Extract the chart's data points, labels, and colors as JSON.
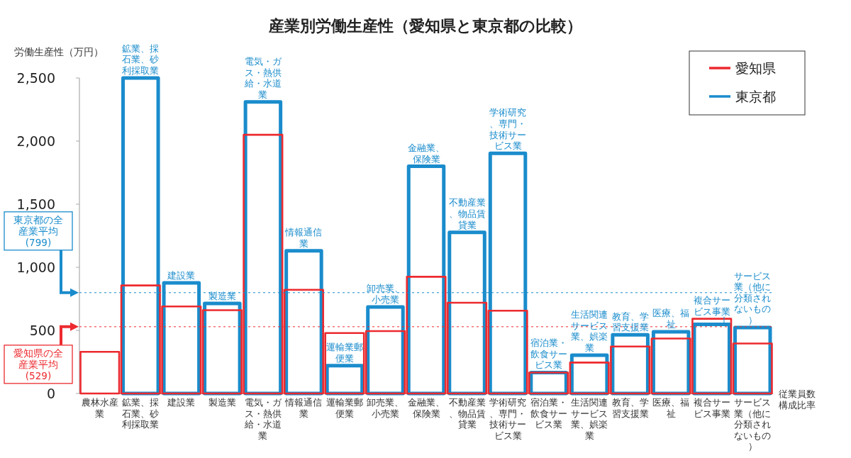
{
  "chart_data": {
    "type": "bar",
    "title": "産業別労働生産性（愛知県と東京都の比較）",
    "ylabel": "労働生産性（万円）",
    "xlabel": "従業員数構成比率",
    "categories": [
      "農林水産業",
      "鉱業、採石業、砂利採取業",
      "建設業",
      "製造業",
      "電気・ガス・熱供給・水道業",
      "情報通信業",
      "運輸業郵便業",
      "卸売業、小売業",
      "金融業、保険業",
      "不動産業、物品賃貸業",
      "学術研究、専門・技術サービス業",
      "宿泊業・飲食サービス業",
      "生活関連サービス業、娯楽業",
      "教育、学習支援業",
      "医療、福祉",
      "複合サービス事業",
      "サービス業（他に分類されないもの）"
    ],
    "ylim": [
      0,
      2500
    ],
    "yticks": [
      {
        "value": 0,
        "label": "0"
      },
      {
        "value": 500,
        "label": "500"
      },
      {
        "value": 1000,
        "label": "1,000"
      },
      {
        "value": 1500,
        "label": "1,500"
      },
      {
        "value": 2000,
        "label": "2,000"
      },
      {
        "value": 2500,
        "label": "2,500"
      }
    ],
    "legend": "top right",
    "series": [
      {
        "name": "愛知県",
        "color": "#ec2a2f",
        "values": [
          330,
          856,
          690,
          660,
          2050,
          822,
          479,
          494,
          925,
          719,
          656,
          166,
          245,
          372,
          435,
          592,
          396
        ]
      },
      {
        "name": "東京都",
        "color": "#1a8ccc",
        "values": [
          null,
          2500,
          876,
          714,
          2310,
          1130,
          220,
          685,
          1800,
          1277,
          1903,
          166,
          303,
          465,
          489,
          548,
          523
        ]
      }
    ],
    "ref_lines": [
      {
        "axis": "y",
        "value": 799,
        "label": "東京都の全産業平均(799)",
        "color": "#1a8ccc"
      },
      {
        "axis": "y",
        "value": 529,
        "label": "愛知県の全産業平均(529)",
        "color": "#ec2a2f"
      }
    ],
    "annotations": [
      {
        "text": "鉱業、採石業、砂利採取業",
        "x": "鉱業、採石業、砂利採取業",
        "y": 2500
      },
      {
        "text": "建設業",
        "x": "建設業",
        "y": 876
      },
      {
        "text": "製造業",
        "x": "製造業",
        "y": 714
      },
      {
        "text": "電気・ガス・熱供給・水道業",
        "x": "電気・ガス・熱供給・水道業",
        "y": 2310
      },
      {
        "text": "情報通信業",
        "x": "情報通信業",
        "y": 1130
      },
      {
        "text": "運輸業郵便業",
        "x": "運輸業郵便業",
        "y": 220
      },
      {
        "text": "卸売業、小売業",
        "x": "卸売業、小売業",
        "y": 685
      },
      {
        "text": "金融業、保険業",
        "x": "金融業、保険業",
        "y": 1800
      },
      {
        "text": "不動産業、物品賃貸業",
        "x": "不動産業、物品賃貸業",
        "y": 1277
      },
      {
        "text": "学術研究、専門・技術サービス業",
        "x": "学術研究、専門・技術サービス業",
        "y": 1903
      },
      {
        "text": "宿泊業・飲食サービス業",
        "x": "宿泊業・飲食サービス業",
        "y": 166
      },
      {
        "text": "生活関連サービス業、娯楽業",
        "x": "生活関連サービス業、娯楽業",
        "y": 303
      },
      {
        "text": "教育、学習支援業",
        "x": "教育、学習支援業",
        "y": 465
      },
      {
        "text": "医療、福祉",
        "x": "医療、福祉",
        "y": 489
      },
      {
        "text": "複合サービス事業",
        "x": "複合サービス事業",
        "y": 548
      },
      {
        "text": "サービス業（他に分類されないもの）",
        "x": "サービス業（他に分類されないもの）",
        "y": 523
      }
    ]
  }
}
